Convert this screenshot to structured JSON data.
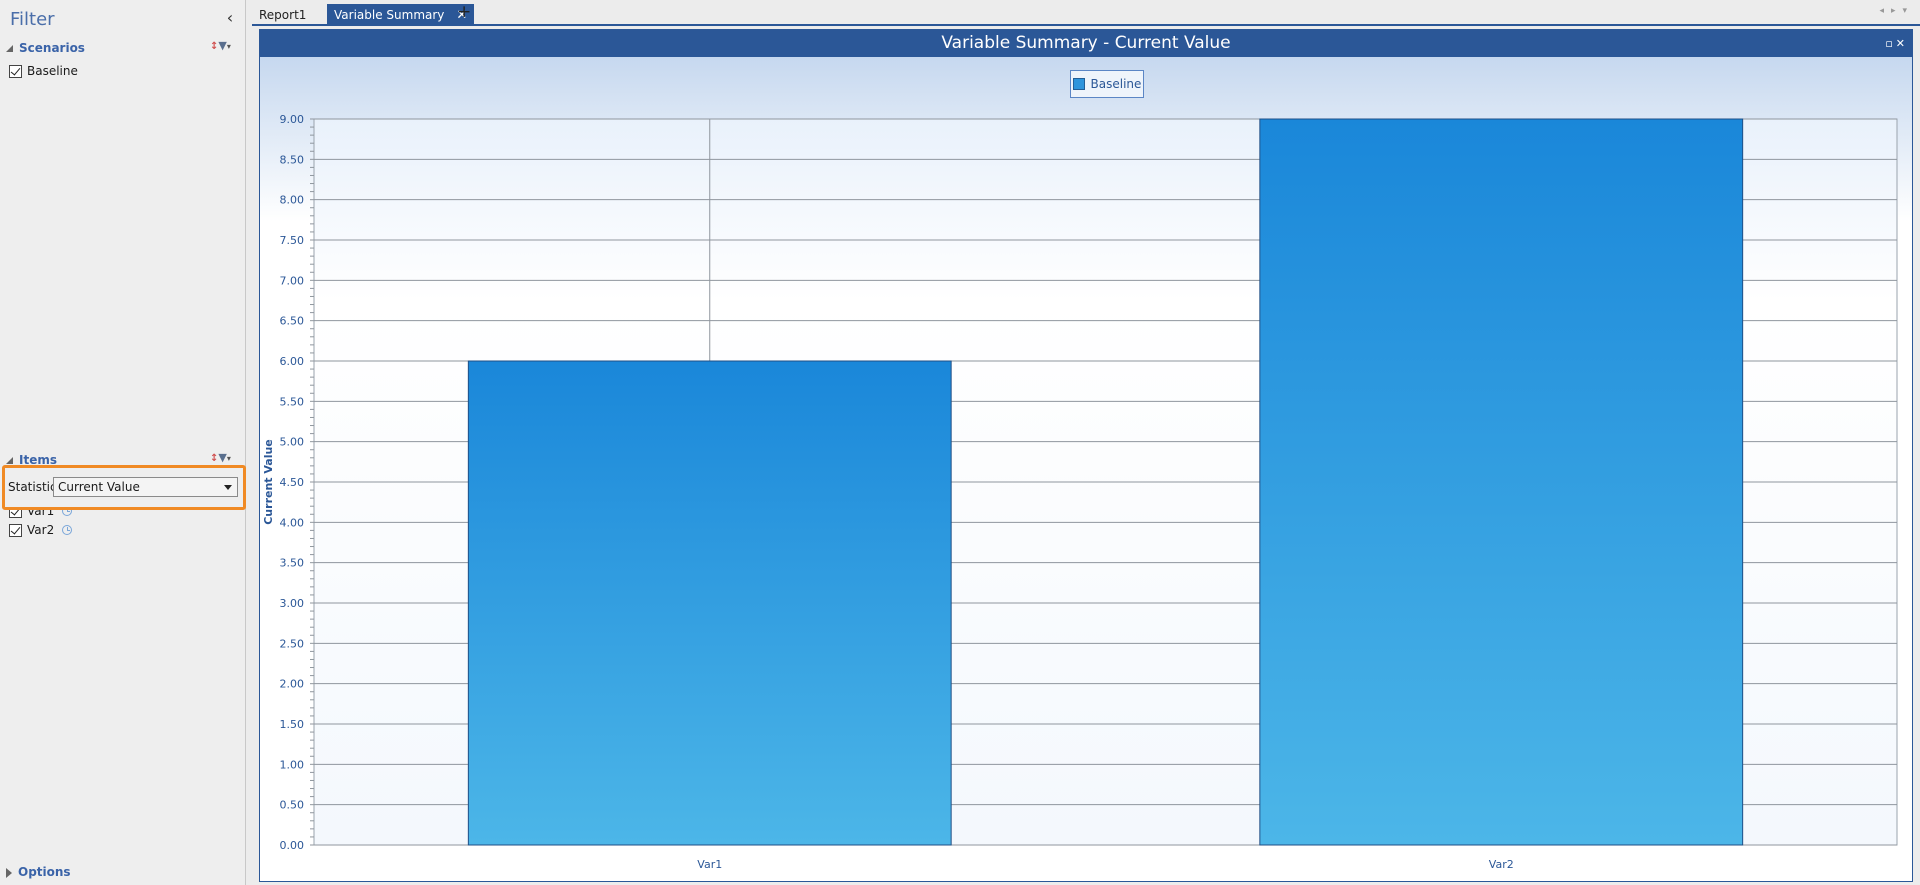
{
  "filter_panel": {
    "title": "Filter",
    "scenarios": {
      "header": "Scenarios",
      "items": [
        {
          "label": "Baseline",
          "checked": true
        }
      ]
    },
    "items_section": {
      "header": "Items",
      "statistic_label": "Statistic:",
      "statistic_value": "Current Value",
      "items": [
        {
          "label": "Var1",
          "checked": true
        },
        {
          "label": "Var2",
          "checked": true
        }
      ]
    },
    "options_label": "Options"
  },
  "tabs": [
    {
      "label": "Report1",
      "active": false
    },
    {
      "label": "Variable Summary",
      "active": true
    }
  ],
  "report": {
    "title": "Variable Summary - Current Value"
  },
  "chart_data": {
    "type": "bar",
    "categories": [
      "Var1",
      "Var2"
    ],
    "series": [
      {
        "name": "Baseline",
        "values": [
          6.0,
          9.0
        ]
      }
    ],
    "ylabel": "Current Value",
    "xlabel": "",
    "ylim": [
      0,
      9
    ],
    "yticks": [
      "0.00",
      "0.50",
      "1.00",
      "1.50",
      "2.00",
      "2.50",
      "3.00",
      "3.50",
      "4.00",
      "4.50",
      "5.00",
      "5.50",
      "6.00",
      "6.50",
      "7.00",
      "7.50",
      "8.00",
      "8.50",
      "9.00"
    ],
    "grid": true,
    "legend": "top-center",
    "bar_color": "#2f95dc"
  },
  "colors": {
    "accent": "#2b5797",
    "highlight": "#f08a24"
  }
}
